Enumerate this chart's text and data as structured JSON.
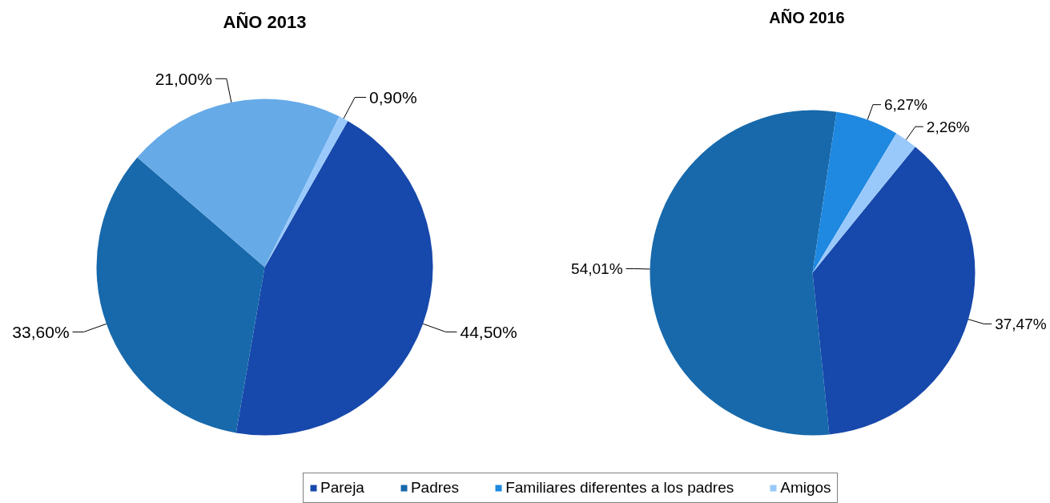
{
  "chart_data": [
    {
      "type": "pie",
      "title": "AÑO 2013",
      "categories": [
        null,
        null,
        null,
        null
      ],
      "values": [
        44.5,
        33.6,
        21.0,
        0.9
      ],
      "colors": [
        "#1748ab",
        "#1769ab",
        "#66aae8",
        "#99c9fb"
      ],
      "value_labels": [
        "44,50%",
        "33,60%",
        "21,00%",
        "0,90%"
      ]
    },
    {
      "type": "pie",
      "title": "AÑO 2016",
      "categories": [
        "Pareja",
        "Padres",
        "Familiares diferentes a los padres",
        "Amigos"
      ],
      "values": [
        37.47,
        54.01,
        6.27,
        2.26
      ],
      "colors": [
        "#1748ab",
        "#1769ab",
        "#1f88e0",
        "#99c9fb"
      ],
      "value_labels": [
        "37,47%",
        "54,01%",
        "6,27%",
        "2,26%"
      ],
      "legend": "bottom"
    }
  ]
}
